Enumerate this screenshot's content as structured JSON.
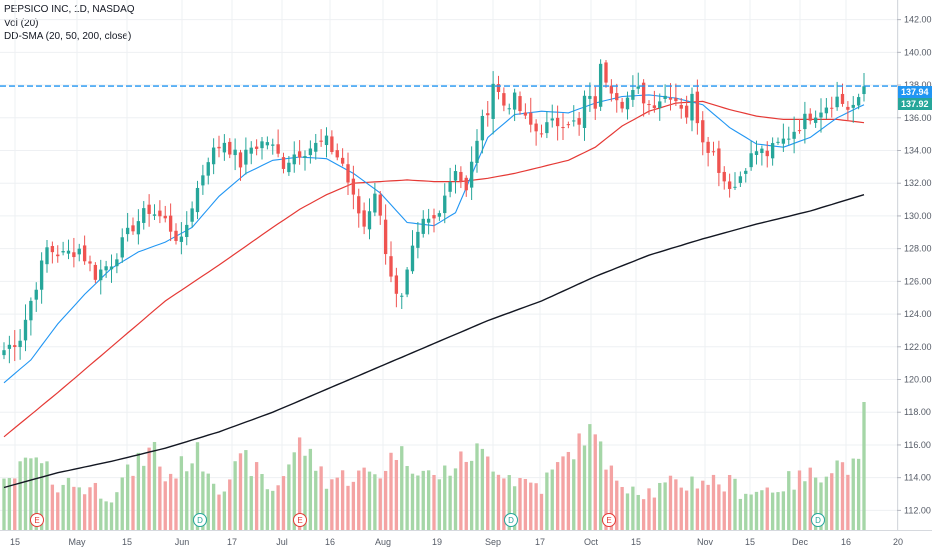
{
  "legend": {
    "symbol": "PEPSICO INC, 1D, NASDAQ",
    "volume": "Vol (20)",
    "indicator": "DD-SMA (20, 50, 200, close)"
  },
  "price_tags": [
    {
      "label": "137.94",
      "color": "#2196f3"
    },
    {
      "label": "137.92",
      "color": "#26a69a"
    }
  ],
  "colors": {
    "up": "#26a69a",
    "down": "#ef5350",
    "vol_up": "#a5d6a7",
    "vol_down": "#f4a3a3",
    "sma20": "#2196f3",
    "sma50": "#e53935",
    "sma200": "#131722",
    "grid": "#eef0f3",
    "level_line": "#2196f3"
  },
  "chart_data": {
    "type": "candlestick",
    "title": "PEPSICO INC, 1D, NASDAQ",
    "ylim": [
      110.8,
      143.2
    ],
    "y_ticks": [
      112,
      114,
      116,
      118,
      120,
      122,
      124,
      126,
      128,
      130,
      132,
      134,
      136,
      138,
      140,
      142
    ],
    "x_ticks": [
      "15",
      "May",
      "15",
      "Jun",
      "17",
      "Jul",
      "16",
      "Aug",
      "19",
      "Sep",
      "17",
      "Oct",
      "15",
      "Nov",
      "15",
      "Dec",
      "16",
      "20"
    ],
    "level_line": 137.94,
    "events": [
      {
        "type": "E",
        "tick_index": 0
      },
      {
        "type": "D",
        "tick_index": 3
      },
      {
        "type": "E",
        "tick_index": 5
      },
      {
        "type": "D",
        "tick_index": 9
      },
      {
        "type": "E",
        "tick_index": 11
      },
      {
        "type": "D",
        "tick_index": 15
      }
    ],
    "price_keypoints": [
      [
        0,
        121.8
      ],
      [
        3,
        122.6
      ],
      [
        5,
        124.8
      ],
      [
        8,
        128.0
      ],
      [
        11,
        127.6
      ],
      [
        14,
        128.0
      ],
      [
        17,
        126.4
      ],
      [
        20,
        127.2
      ],
      [
        24,
        129.4
      ],
      [
        27,
        130.4
      ],
      [
        30,
        129.7
      ],
      [
        33,
        128.3
      ],
      [
        35,
        130.7
      ],
      [
        38,
        133.6
      ],
      [
        41,
        134.6
      ],
      [
        44,
        133.2
      ],
      [
        46,
        134.2
      ],
      [
        49,
        134.6
      ],
      [
        52,
        133.2
      ],
      [
        54,
        133.8
      ],
      [
        57,
        134.2
      ],
      [
        60,
        134.5
      ],
      [
        63,
        133.2
      ],
      [
        65,
        131.0
      ],
      [
        67,
        129.4
      ],
      [
        69,
        131.6
      ],
      [
        71,
        128.0
      ],
      [
        73,
        125.0
      ],
      [
        74,
        124.8
      ],
      [
        76,
        127.8
      ],
      [
        78,
        129.6
      ],
      [
        80,
        129.8
      ],
      [
        82,
        131.4
      ],
      [
        84,
        133.0
      ],
      [
        86,
        131.4
      ],
      [
        88,
        134.8
      ],
      [
        90,
        136.6
      ],
      [
        91,
        138.2
      ],
      [
        93,
        136.8
      ],
      [
        95,
        137.1
      ],
      [
        97,
        135.8
      ],
      [
        99,
        135.2
      ],
      [
        102,
        135.6
      ],
      [
        105,
        135.9
      ],
      [
        107,
        135.4
      ],
      [
        108,
        137.2
      ],
      [
        110,
        136.8
      ],
      [
        111,
        139.0
      ],
      [
        113,
        137.9
      ],
      [
        115,
        137.0
      ],
      [
        118,
        137.6
      ],
      [
        120,
        136.8
      ],
      [
        122,
        137.2
      ],
      [
        124,
        137.5
      ],
      [
        126,
        136.8
      ],
      [
        127,
        136.2
      ],
      [
        128,
        137.2
      ],
      [
        130,
        134.8
      ],
      [
        132,
        133.8
      ],
      [
        134,
        132.2
      ],
      [
        136,
        131.8
      ],
      [
        138,
        133.2
      ],
      [
        140,
        134.0
      ],
      [
        142,
        133.8
      ],
      [
        145,
        134.6
      ],
      [
        148,
        135.6
      ],
      [
        150,
        136.2
      ],
      [
        153,
        136.8
      ],
      [
        155,
        137.2
      ],
      [
        157,
        136.6
      ],
      [
        159,
        136.9
      ],
      [
        160,
        137.9
      ]
    ],
    "sma20_keypoints": [
      [
        0,
        119.8
      ],
      [
        5,
        121.2
      ],
      [
        10,
        123.4
      ],
      [
        15,
        125.2
      ],
      [
        20,
        126.8
      ],
      [
        25,
        127.8
      ],
      [
        30,
        128.4
      ],
      [
        35,
        129.3
      ],
      [
        40,
        131.2
      ],
      [
        45,
        132.6
      ],
      [
        50,
        133.4
      ],
      [
        55,
        133.6
      ],
      [
        60,
        133.5
      ],
      [
        65,
        132.6
      ],
      [
        70,
        131.4
      ],
      [
        75,
        129.6
      ],
      [
        80,
        129.4
      ],
      [
        84,
        130.2
      ],
      [
        87,
        132.5
      ],
      [
        90,
        134.8
      ],
      [
        95,
        136.2
      ],
      [
        100,
        136.4
      ],
      [
        105,
        136.3
      ],
      [
        110,
        136.9
      ],
      [
        115,
        137.3
      ],
      [
        120,
        137.4
      ],
      [
        125,
        137.2
      ],
      [
        130,
        136.8
      ],
      [
        135,
        135.4
      ],
      [
        140,
        134.4
      ],
      [
        145,
        134.2
      ],
      [
        150,
        134.8
      ],
      [
        155,
        136.0
      ],
      [
        160,
        136.8
      ]
    ],
    "sma50_keypoints": [
      [
        0,
        116.5
      ],
      [
        10,
        119.2
      ],
      [
        20,
        122.0
      ],
      [
        30,
        124.8
      ],
      [
        40,
        127.0
      ],
      [
        50,
        129.3
      ],
      [
        55,
        130.4
      ],
      [
        60,
        131.3
      ],
      [
        65,
        132.0
      ],
      [
        70,
        132.1
      ],
      [
        75,
        132.2
      ],
      [
        80,
        132.1
      ],
      [
        85,
        132.1
      ],
      [
        90,
        132.3
      ],
      [
        95,
        132.6
      ],
      [
        100,
        133.0
      ],
      [
        105,
        133.4
      ],
      [
        110,
        134.2
      ],
      [
        115,
        135.5
      ],
      [
        120,
        136.4
      ],
      [
        125,
        136.9
      ],
      [
        130,
        137.0
      ],
      [
        135,
        136.5
      ],
      [
        140,
        136.1
      ],
      [
        145,
        135.9
      ],
      [
        150,
        135.9
      ],
      [
        155,
        135.9
      ],
      [
        160,
        135.7
      ]
    ],
    "sma200_keypoints": [
      [
        0,
        113.4
      ],
      [
        10,
        114.3
      ],
      [
        20,
        115.0
      ],
      [
        30,
        115.8
      ],
      [
        40,
        116.8
      ],
      [
        50,
        118.0
      ],
      [
        60,
        119.4
      ],
      [
        70,
        120.8
      ],
      [
        80,
        122.2
      ],
      [
        90,
        123.6
      ],
      [
        100,
        124.8
      ],
      [
        110,
        126.3
      ],
      [
        120,
        127.6
      ],
      [
        130,
        128.6
      ],
      [
        140,
        129.5
      ],
      [
        150,
        130.3
      ],
      [
        160,
        131.3
      ]
    ],
    "volume_keypoints": [
      [
        0,
        0.33
      ],
      [
        5,
        0.55
      ],
      [
        10,
        0.38
      ],
      [
        20,
        0.3
      ],
      [
        28,
        0.65
      ],
      [
        30,
        0.4
      ],
      [
        36,
        0.6
      ],
      [
        40,
        0.35
      ],
      [
        45,
        0.55
      ],
      [
        50,
        0.3
      ],
      [
        55,
        0.68
      ],
      [
        60,
        0.4
      ],
      [
        70,
        0.45
      ],
      [
        73,
        0.62
      ],
      [
        80,
        0.4
      ],
      [
        88,
        0.62
      ],
      [
        95,
        0.4
      ],
      [
        100,
        0.35
      ],
      [
        110,
        0.82
      ],
      [
        112,
        0.45
      ],
      [
        120,
        0.3
      ],
      [
        130,
        0.4
      ],
      [
        140,
        0.3
      ],
      [
        150,
        0.42
      ],
      [
        155,
        0.52
      ],
      [
        159,
        0.48
      ],
      [
        160,
        0.98
      ]
    ]
  }
}
